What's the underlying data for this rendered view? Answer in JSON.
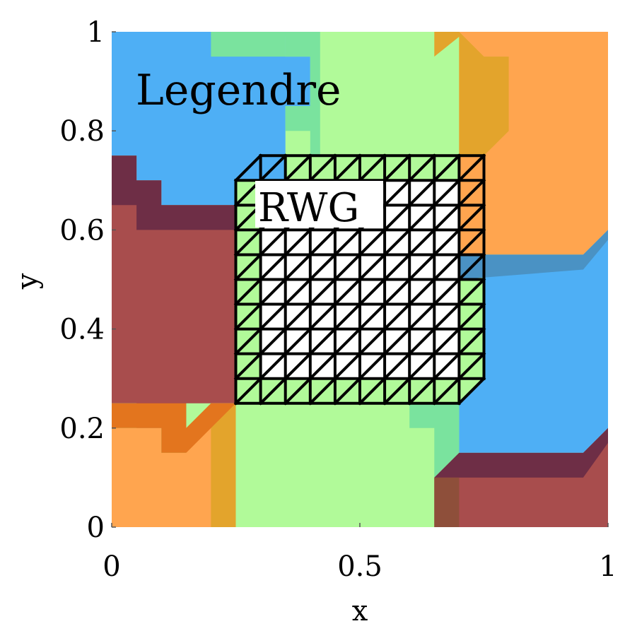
{
  "axes": {
    "xlabel": "x",
    "ylabel": "y",
    "xlim": [
      0,
      1
    ],
    "ylim": [
      0,
      1
    ],
    "xticks": [
      {
        "value": 0,
        "label": "0"
      },
      {
        "value": 0.5,
        "label": "0.5"
      },
      {
        "value": 1,
        "label": "1"
      }
    ],
    "yticks": [
      {
        "value": 0,
        "label": "0"
      },
      {
        "value": 0.2,
        "label": "0.2"
      },
      {
        "value": 0.4,
        "label": "0.4"
      },
      {
        "value": 0.6,
        "label": "0.6"
      },
      {
        "value": 0.8,
        "label": "0.8"
      },
      {
        "value": 1,
        "label": "1"
      }
    ]
  },
  "annotations": {
    "legendre": "Legendre",
    "rwg": "RWG"
  },
  "colors": {
    "blue": "#4eaff5",
    "green": "#b1fa99",
    "orange": "#ffa54f",
    "red": "#a84d4d",
    "green_overlap": "#7ae39e",
    "orange_overlap": "#e3a42c",
    "dark_overlap": "#6e2e46",
    "blue_overlap": "#4a92c4",
    "orange_dark": "#e3751e",
    "brown_overlap": "#8e4f3a",
    "mesh_fill": "#ffffff",
    "mesh_line": "#000000"
  },
  "mesh": {
    "x_range": [
      0.25,
      0.75
    ],
    "y_range": [
      0.25,
      0.75
    ],
    "divisions": 10
  }
}
